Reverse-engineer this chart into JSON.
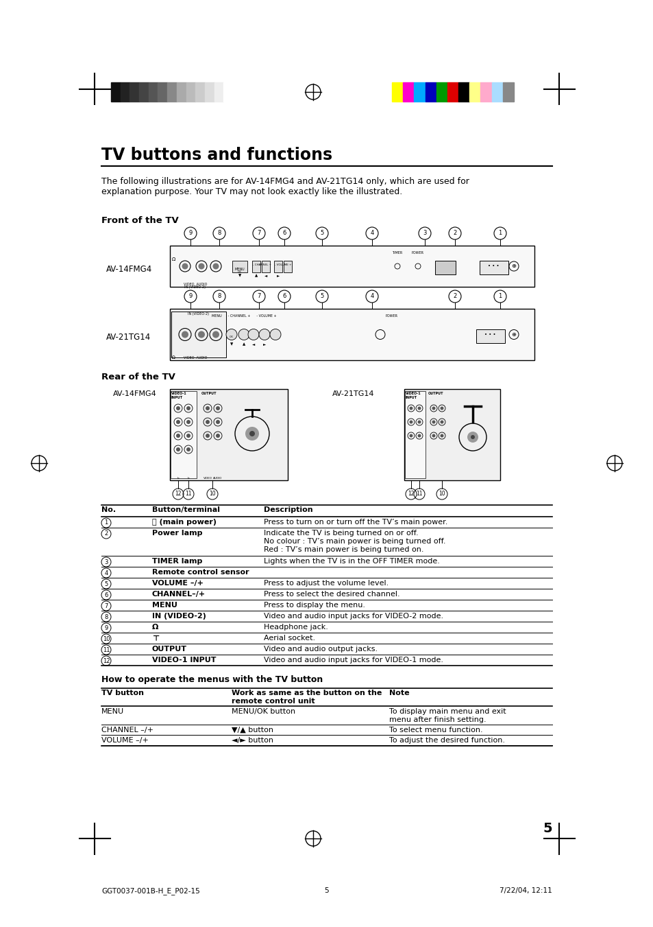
{
  "title": "TV buttons and functions",
  "subtitle": "The following illustrations are for AV-14FMG4 and AV-21TG14 only, which are used for\nexplanation purpose. Your TV may not look exactly like the illustrated.",
  "front_label": "Front of the TV",
  "rear_label": "Rear of the TV",
  "av14_label": "AV-14FMG4",
  "av21_label": "AV-21TG14",
  "page_number": "5",
  "footer_left": "GGT0037-001B-H_E_P02-15",
  "footer_center": "5",
  "footer_right": "7/22/04, 12:11",
  "color_bar_left": [
    "#111111",
    "#222222",
    "#333333",
    "#444444",
    "#555555",
    "#666666",
    "#888888",
    "#aaaaaa",
    "#bbbbbb",
    "#cccccc",
    "#dddddd",
    "#eeeeee",
    "#ffffff"
  ],
  "color_bar_right": [
    "#ffff00",
    "#ff00cc",
    "#00aaff",
    "#0000bb",
    "#009900",
    "#dd0000",
    "#000000",
    "#ffff88",
    "#ffaacc",
    "#aaddff",
    "#888888"
  ],
  "table1_headers": [
    "No.",
    "Button/terminal",
    "Description"
  ],
  "table1_rows": [
    [
      "1",
      "ⓘ (main power)",
      "Press to turn on or turn off the TV’s main power."
    ],
    [
      "2",
      "Power lamp",
      "Indicate the TV is being turned on or off.\nNo colour : TV’s main power is being turned off.\nRed : TV’s main power is being turned on."
    ],
    [
      "3",
      "TIMER lamp",
      "Lights when the TV is in the OFF TIMER mode."
    ],
    [
      "4",
      "Remote control sensor",
      ""
    ],
    [
      "5",
      "VOLUME –/+",
      "Press to adjust the volume level."
    ],
    [
      "6",
      "CHANNEL–/+",
      "Press to select the desired channel."
    ],
    [
      "7",
      "MENU",
      "Press to display the menu."
    ],
    [
      "8",
      "IN (VIDEO-2)",
      "Video and audio input jacks for VIDEO-2 mode."
    ],
    [
      "9",
      "Ω",
      "Headphone jack."
    ],
    [
      "10",
      "⊤",
      "Aerial socket."
    ],
    [
      "11",
      "OUTPUT",
      "Video and audio output jacks."
    ],
    [
      "12",
      "VIDEO-1 INPUT",
      "Video and audio input jacks for VIDEO-1 mode."
    ]
  ],
  "table2_header": "How to operate the menus with the TV button",
  "table2_col_headers": [
    "TV button",
    "Work as same as the button on the\nremote control unit",
    "Note"
  ],
  "table2_rows": [
    [
      "MENU",
      "MENU/OK button",
      "To display main menu and exit\nmenu after finish setting."
    ],
    [
      "CHANNEL –/+",
      "▼/▲ button",
      "To select menu function."
    ],
    [
      "VOLUME –/+",
      "◄/► button",
      "To adjust the desired function."
    ]
  ],
  "bg_color": "#ffffff",
  "text_color": "#000000"
}
